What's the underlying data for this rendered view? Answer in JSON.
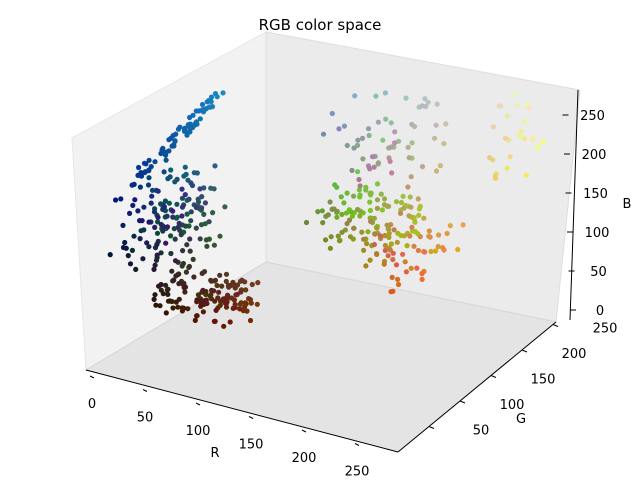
{
  "chart_data": {
    "type": "scatter",
    "projection": "3d",
    "title": "RGB color space",
    "xlabel": "R",
    "ylabel": "G",
    "zlabel": "B",
    "xlim": [
      0,
      255
    ],
    "ylim": [
      0,
      255
    ],
    "zlim": [
      0,
      255
    ],
    "x_ticks": [
      "0",
      "50",
      "100",
      "150",
      "200",
      "250"
    ],
    "y_ticks": [
      "50",
      "100",
      "150",
      "200",
      "250"
    ],
    "z_ticks": [
      "0",
      "50",
      "100",
      "150",
      "200",
      "250"
    ],
    "grid": false,
    "point_color": "rgb(R,G,B) of each point",
    "point_groups": [
      {
        "name": "blue-cyan ridge",
        "r": [
          0,
          40
        ],
        "g": [
          60,
          190
        ],
        "b": [
          130,
          240
        ]
      },
      {
        "name": "cyan top band",
        "r": [
          40,
          255
        ],
        "g": [
          180,
          255
        ],
        "b": [
          225,
          255
        ]
      },
      {
        "name": "dark blues",
        "r": [
          0,
          60
        ],
        "g": [
          20,
          100
        ],
        "b": [
          40,
          140
        ]
      },
      {
        "name": "dark browns",
        "r": [
          40,
          120
        ],
        "g": [
          20,
          60
        ],
        "b": [
          0,
          40
        ]
      },
      {
        "name": "olive greens",
        "r": [
          100,
          180
        ],
        "g": [
          130,
          200
        ],
        "b": [
          20,
          80
        ]
      },
      {
        "name": "greys",
        "r": [
          120,
          200
        ],
        "g": [
          120,
          200
        ],
        "b": [
          120,
          200
        ]
      },
      {
        "name": "oranges",
        "r": [
          180,
          240
        ],
        "g": [
          90,
          170
        ],
        "b": [
          30,
          100
        ]
      },
      {
        "name": "pale yellows",
        "r": [
          220,
          255
        ],
        "g": [
          200,
          255
        ],
        "b": [
          90,
          200
        ]
      }
    ]
  }
}
